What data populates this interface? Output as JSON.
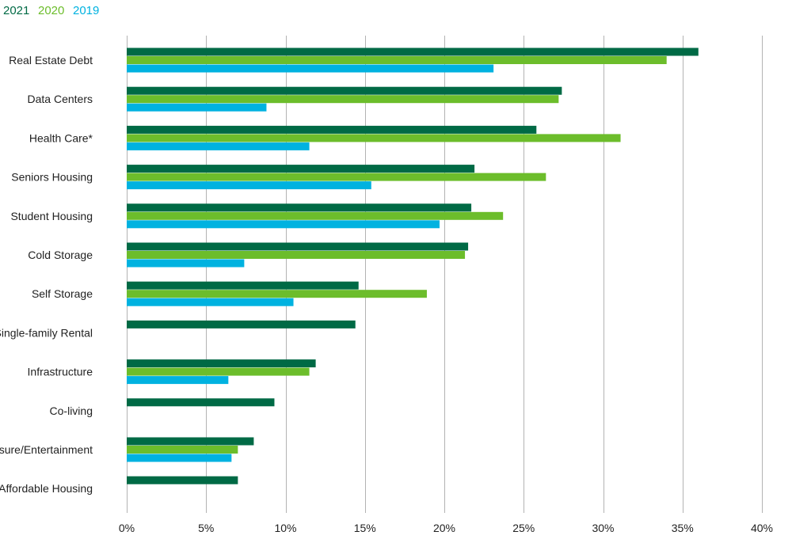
{
  "chart_data": {
    "type": "bar",
    "orientation": "horizontal",
    "categories": [
      "Real Estate Debt",
      "Data Centers",
      "Health Care*",
      "Seniors Housing",
      "Student Housing",
      "Cold Storage",
      "Self Storage",
      "Single-family Rental",
      "Infrastructure",
      "Co-living",
      "Leisure/Entertainment",
      "Affordable Housing"
    ],
    "series": [
      {
        "name": "2021",
        "color": "#006a45",
        "values": [
          36.0,
          27.4,
          25.8,
          21.9,
          21.7,
          21.5,
          14.6,
          14.4,
          11.9,
          9.3,
          8.0,
          7.0
        ]
      },
      {
        "name": "2020",
        "color": "#6cbd2b",
        "values": [
          34.0,
          27.2,
          31.1,
          26.4,
          23.7,
          21.3,
          18.9,
          null,
          11.5,
          null,
          7.0,
          null
        ]
      },
      {
        "name": "2019",
        "color": "#00b2e0",
        "values": [
          23.1,
          8.8,
          11.5,
          15.4,
          19.7,
          7.4,
          10.5,
          null,
          6.4,
          null,
          6.6,
          null
        ]
      }
    ],
    "xlim": [
      0,
      40
    ],
    "xticks": [
      0,
      5,
      10,
      15,
      20,
      25,
      30,
      35,
      40
    ],
    "xtick_labels": [
      "0%",
      "5%",
      "10%",
      "15%",
      "20%",
      "25%",
      "30%",
      "35%",
      "40%"
    ],
    "grid": true,
    "legend_position": "top-left",
    "title": "",
    "xlabel": "",
    "ylabel": ""
  }
}
